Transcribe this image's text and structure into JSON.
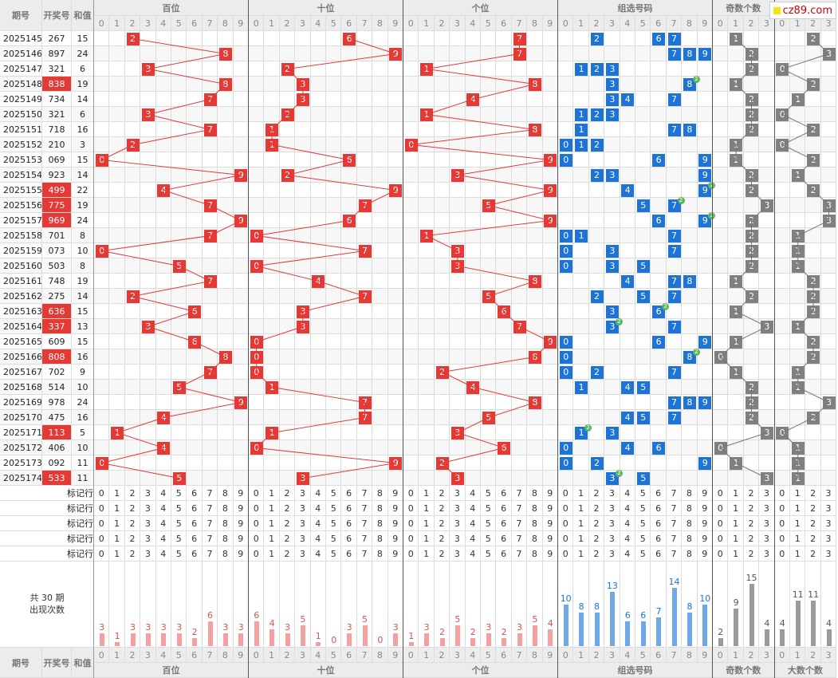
{
  "header": {
    "period_label": "期号",
    "draw_label": "开奖号",
    "sum_label": "和值",
    "groups": [
      "百位",
      "十位",
      "个位",
      "组选号码",
      "奇数个数",
      "大数个数"
    ],
    "digits10": [
      "0",
      "1",
      "2",
      "3",
      "4",
      "5",
      "6",
      "7",
      "8",
      "9"
    ],
    "digits4": [
      "0",
      "1",
      "2",
      "3"
    ]
  },
  "logo": {
    "text": "cz89.com"
  },
  "rows": [
    {
      "p": "2025145",
      "n": "267",
      "s": "15",
      "hl": false
    },
    {
      "p": "2025146",
      "n": "897",
      "s": "24",
      "hl": false
    },
    {
      "p": "2025147",
      "n": "321",
      "s": "6",
      "hl": false
    },
    {
      "p": "2025148",
      "n": "838",
      "s": "19",
      "hl": true
    },
    {
      "p": "2025149",
      "n": "734",
      "s": "14",
      "hl": false
    },
    {
      "p": "2025150",
      "n": "321",
      "s": "6",
      "hl": false
    },
    {
      "p": "2025151",
      "n": "718",
      "s": "16",
      "hl": false
    },
    {
      "p": "2025152",
      "n": "210",
      "s": "3",
      "hl": false
    },
    {
      "p": "2025153",
      "n": "069",
      "s": "15",
      "hl": false
    },
    {
      "p": "2025154",
      "n": "923",
      "s": "14",
      "hl": false
    },
    {
      "p": "2025155",
      "n": "499",
      "s": "22",
      "hl": true
    },
    {
      "p": "2025156",
      "n": "775",
      "s": "19",
      "hl": true
    },
    {
      "p": "2025157",
      "n": "969",
      "s": "24",
      "hl": true
    },
    {
      "p": "2025158",
      "n": "701",
      "s": "8",
      "hl": false
    },
    {
      "p": "2025159",
      "n": "073",
      "s": "10",
      "hl": false
    },
    {
      "p": "2025160",
      "n": "503",
      "s": "8",
      "hl": false
    },
    {
      "p": "2025161",
      "n": "748",
      "s": "19",
      "hl": false
    },
    {
      "p": "2025162",
      "n": "275",
      "s": "14",
      "hl": false
    },
    {
      "p": "2025163",
      "n": "636",
      "s": "15",
      "hl": true
    },
    {
      "p": "2025164",
      "n": "337",
      "s": "13",
      "hl": true
    },
    {
      "p": "2025165",
      "n": "609",
      "s": "15",
      "hl": false
    },
    {
      "p": "2025166",
      "n": "808",
      "s": "16",
      "hl": true
    },
    {
      "p": "2025167",
      "n": "702",
      "s": "9",
      "hl": false
    },
    {
      "p": "2025168",
      "n": "514",
      "s": "10",
      "hl": false
    },
    {
      "p": "2025169",
      "n": "978",
      "s": "24",
      "hl": false
    },
    {
      "p": "2025170",
      "n": "475",
      "s": "16",
      "hl": false
    },
    {
      "p": "2025171",
      "n": "113",
      "s": "5",
      "hl": true
    },
    {
      "p": "2025172",
      "n": "406",
      "s": "10",
      "hl": false
    },
    {
      "p": "2025173",
      "n": "092",
      "s": "11",
      "hl": false
    },
    {
      "p": "2025174",
      "n": "533",
      "s": "11",
      "hl": true
    }
  ],
  "mark_rows": {
    "label": "标记行",
    "count": 5
  },
  "stats": {
    "label_line1": "共 30 期",
    "label_line2": "出现次数",
    "hundreds": [
      3,
      1,
      3,
      3,
      3,
      3,
      2,
      6,
      3,
      3
    ],
    "tens": [
      6,
      4,
      3,
      5,
      1,
      0,
      3,
      5,
      0,
      3
    ],
    "units": [
      1,
      3,
      2,
      5,
      2,
      3,
      2,
      3,
      5,
      4
    ],
    "group": [
      10,
      8,
      8,
      13,
      6,
      6,
      7,
      14,
      8,
      10
    ],
    "odd": [
      2,
      9,
      15,
      4
    ],
    "big": [
      4,
      11,
      11,
      4
    ]
  },
  "colors": {
    "red": "#e53935",
    "blue": "#1e73d6",
    "gray": "#808080",
    "dark": "#595959",
    "dup": "#5cb85c"
  }
}
